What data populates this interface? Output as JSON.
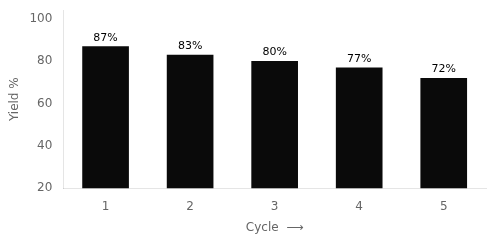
{
  "chart_data": {
    "type": "bar",
    "categories": [
      "1",
      "2",
      "3",
      "4",
      "5"
    ],
    "values": [
      87,
      83,
      80,
      77,
      72
    ],
    "value_labels": [
      "87%",
      "83%",
      "80%",
      "77%",
      "72%"
    ],
    "data_labels": true,
    "color": "#0a0a0a",
    "xlabel": "Cycle  ⟶",
    "ylabel": "Yield %",
    "ylim": [
      20,
      104
    ],
    "yticks": [
      20,
      40,
      60,
      80,
      100
    ],
    "grid": false
  }
}
